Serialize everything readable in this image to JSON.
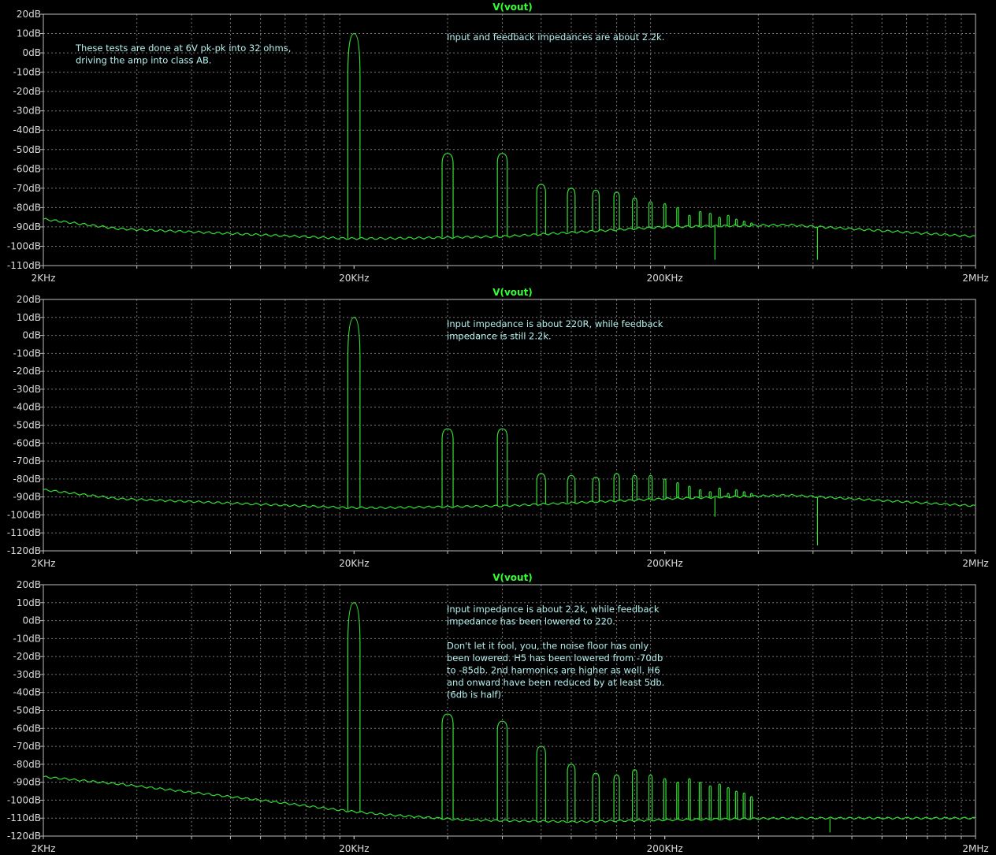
{
  "chart_data": [
    {
      "type": "line",
      "title": "V(vout)",
      "x_ticks": [
        "2KHz",
        "20KHz",
        "200KHz",
        "2MHz"
      ],
      "y_ticks": [
        "20dB",
        "10dB",
        "0dB",
        "-10dB",
        "-20dB",
        "-30dB",
        "-40dB",
        "-50dB",
        "-60dB",
        "-70dB",
        "-80dB",
        "-90dB",
        "-100dB",
        "-110dB"
      ],
      "ylim": [
        -110,
        20
      ],
      "xlim_hz": [
        2000,
        2000000
      ],
      "x_scale": "log",
      "grid": true,
      "series_color": "#33dd33",
      "fundamental": {
        "freq_hz": 20000,
        "db": 10
      },
      "harmonics_db": [
        -52,
        -52,
        -68,
        -70,
        -71,
        -72,
        -75,
        -77,
        -78,
        -80,
        -84,
        -82,
        -83,
        -85,
        -84,
        -86,
        -87,
        -88
      ],
      "floor_db": [
        [
          2000,
          -86
        ],
        [
          3500,
          -91
        ],
        [
          19000,
          -96
        ],
        [
          25000,
          -96
        ],
        [
          60000,
          -95
        ],
        [
          200000,
          -90
        ],
        [
          500000,
          -89
        ],
        [
          2000000,
          -95
        ]
      ],
      "dips": [
        [
          290000,
          -107
        ],
        [
          620000,
          -107
        ]
      ],
      "annotations": [
        "These tests are done at 6V pk-pk into 32 ohms,",
        "driving the amp into class AB.",
        "Input and feedback impedances are about 2.2k."
      ]
    },
    {
      "type": "line",
      "title": "V(vout)",
      "x_ticks": [
        "2KHz",
        "20KHz",
        "200KHz",
        "2MHz"
      ],
      "y_ticks": [
        "20dB",
        "10dB",
        "0dB",
        "-10dB",
        "-20dB",
        "-30dB",
        "-40dB",
        "-50dB",
        "-60dB",
        "-70dB",
        "-80dB",
        "-90dB",
        "-100dB",
        "-110dB",
        "-120dB"
      ],
      "ylim": [
        -120,
        20
      ],
      "xlim_hz": [
        2000,
        2000000
      ],
      "x_scale": "log",
      "grid": true,
      "series_color": "#33dd33",
      "fundamental": {
        "freq_hz": 20000,
        "db": 10
      },
      "harmonics_db": [
        -52,
        -52,
        -77,
        -78,
        -79,
        -77,
        -78,
        -78,
        -80,
        -82,
        -84,
        -86,
        -87,
        -85,
        -88,
        -86,
        -87,
        -88
      ],
      "floor_db": [
        [
          2000,
          -86
        ],
        [
          3500,
          -91
        ],
        [
          19000,
          -96
        ],
        [
          25000,
          -96
        ],
        [
          60000,
          -95
        ],
        [
          200000,
          -91
        ],
        [
          500000,
          -89
        ],
        [
          2000000,
          -95
        ]
      ],
      "dips": [
        [
          290000,
          -101
        ],
        [
          620000,
          -117
        ]
      ],
      "annotations": [
        "Input impedance is about 220R, while feedback",
        "impedance is still 2.2k."
      ]
    },
    {
      "type": "line",
      "title": "V(vout)",
      "x_ticks": [
        "2KHz",
        "20KHz",
        "200KHz",
        "2MHz"
      ],
      "y_ticks": [
        "20dB",
        "10dB",
        "0dB",
        "-10dB",
        "-20dB",
        "-30dB",
        "-40dB",
        "-50dB",
        "-60dB",
        "-70dB",
        "-80dB",
        "-90dB",
        "-100dB",
        "-110dB",
        "-120dB"
      ],
      "ylim": [
        -120,
        20
      ],
      "xlim_hz": [
        2000,
        2000000
      ],
      "x_scale": "log",
      "grid": true,
      "series_color": "#33dd33",
      "fundamental": {
        "freq_hz": 20000,
        "db": 10
      },
      "harmonics_db": [
        -52,
        -56,
        -70,
        -80,
        -85,
        -86,
        -83,
        -86,
        -88,
        -90,
        -88,
        -90,
        -92,
        -91,
        -93,
        -95,
        -96,
        -98
      ],
      "floor_db": [
        [
          2000,
          -87
        ],
        [
          3500,
          -91
        ],
        [
          10000,
          -100
        ],
        [
          19000,
          -106
        ],
        [
          25000,
          -108
        ],
        [
          45000,
          -111
        ],
        [
          100000,
          -112
        ],
        [
          200000,
          -111
        ],
        [
          500000,
          -110
        ],
        [
          2000000,
          -110
        ]
      ],
      "dips": [
        [
          680000,
          -118
        ]
      ],
      "annotations": [
        "Input impedance is about 2.2k, while feedback",
        "impedance has been lowered to 220.",
        "",
        "Don't let it fool, you, the noise floor has only",
        "been lowered. H5 has been lowered from -70db",
        "to -85db. 2nd harmonics are higher as well. H6",
        "and onward have been reduced by at least 5db.",
        "(6db is half)"
      ]
    }
  ]
}
